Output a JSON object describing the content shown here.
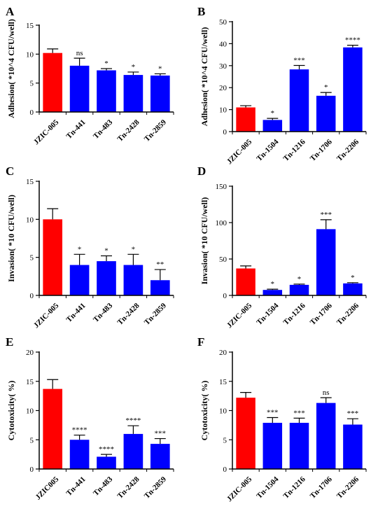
{
  "colors": {
    "control": "#ff0000",
    "mutant": "#0000ff",
    "axis": "#000000"
  },
  "chart_data": [
    {
      "type": "bar",
      "panel": "A",
      "ylabel": "Adhesion( *10^4 CFU/well)",
      "ylim": [
        0,
        15
      ],
      "yticks": [
        0,
        5,
        10,
        15
      ],
      "categories": [
        "JZIC-005",
        "Tn-441",
        "Tn-483",
        "Tn-2428",
        "Tn-2859"
      ],
      "values": [
        10.2,
        8.0,
        7.2,
        6.4,
        6.3
      ],
      "errors": [
        0.7,
        1.3,
        0.3,
        0.5,
        0.3
      ],
      "significance": [
        "",
        "ns",
        "*",
        "*",
        "*"
      ]
    },
    {
      "type": "bar",
      "panel": "B",
      "ylabel": "Adhesion( *10^4 CFU/well)",
      "ylim": [
        0,
        50
      ],
      "yticks": [
        0,
        10,
        20,
        30,
        40,
        50
      ],
      "categories": [
        "JZIC-005",
        "Tn-1504",
        "Tn-1216",
        "Tn-1706",
        "Tn-2206"
      ],
      "values": [
        11.0,
        5.3,
        28.3,
        16.3,
        38.3
      ],
      "errors": [
        0.8,
        0.7,
        1.8,
        1.5,
        1.0
      ],
      "significance": [
        "",
        "*",
        "***",
        "*",
        "****"
      ]
    },
    {
      "type": "bar",
      "panel": "C",
      "ylabel": "Invasion( *10 CFU/well)",
      "ylim": [
        0,
        15
      ],
      "yticks": [
        0,
        5,
        10,
        15
      ],
      "categories": [
        "JZIC-005",
        "Tn-441",
        "Tn-483",
        "Tn-2428",
        "Tn-2859"
      ],
      "values": [
        10.0,
        4.0,
        4.5,
        4.0,
        2.0
      ],
      "errors": [
        1.4,
        1.4,
        0.7,
        1.4,
        1.4
      ],
      "significance": [
        "",
        "*",
        "*",
        "*",
        "**"
      ]
    },
    {
      "type": "bar",
      "panel": "D",
      "ylabel": "Invasion( *10 CFU/well)",
      "ylim": [
        0,
        150
      ],
      "yticks": [
        0,
        50,
        100,
        150
      ],
      "categories": [
        "JZIC-005",
        "Tn-1504",
        "Tn-1216",
        "Tn-1706",
        "Tn-2206"
      ],
      "values": [
        37,
        7.5,
        14.5,
        91,
        16.5
      ],
      "errors": [
        3.5,
        1.0,
        1.0,
        13,
        1.0
      ],
      "significance": [
        "",
        "*",
        "*",
        "***",
        "*"
      ]
    },
    {
      "type": "bar",
      "panel": "E",
      "ylabel": "Cytotoxicity( %)",
      "ylim": [
        0,
        20
      ],
      "yticks": [
        0,
        5,
        10,
        15,
        20
      ],
      "categories": [
        "JZIC005",
        "Tn-441",
        "Tn-483",
        "Tn-2428",
        "Tn-2859"
      ],
      "values": [
        13.7,
        5.0,
        2.1,
        6.0,
        4.3
      ],
      "errors": [
        1.6,
        0.8,
        0.4,
        1.4,
        0.9
      ],
      "significance": [
        "",
        "****",
        "****",
        "****",
        "***"
      ]
    },
    {
      "type": "bar",
      "panel": "F",
      "ylabel": "Cytotoxicity( %)",
      "ylim": [
        0,
        20
      ],
      "yticks": [
        0,
        5,
        10,
        15,
        20
      ],
      "categories": [
        "JZIC-005",
        "Tn-1504",
        "Tn-1216",
        "Tn-1706",
        "Tn-2206"
      ],
      "values": [
        12.2,
        7.9,
        7.9,
        11.3,
        7.6
      ],
      "errors": [
        0.9,
        0.9,
        0.8,
        0.9,
        1.0
      ],
      "significance": [
        "",
        "***",
        "***",
        "ns",
        "***"
      ]
    }
  ]
}
